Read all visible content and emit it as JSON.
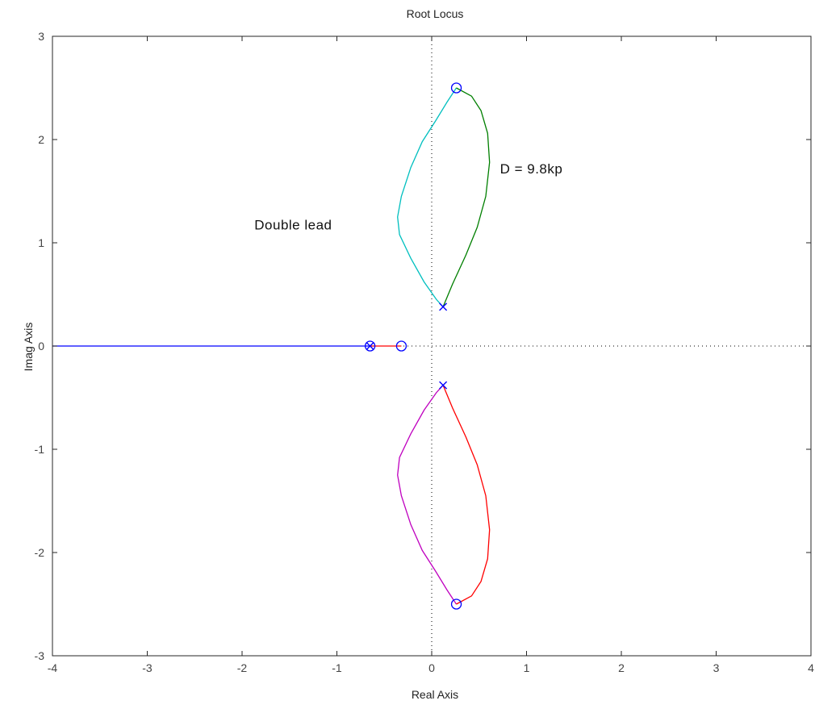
{
  "chart_data": {
    "type": "line",
    "title": "Root Locus",
    "xlabel": "Real Axis",
    "ylabel": "Imag Axis",
    "xlim": [
      -4,
      4
    ],
    "ylim": [
      -3,
      3
    ],
    "xticks": [
      "-4",
      "-3",
      "-2",
      "-1",
      "0",
      "1",
      "2",
      "3",
      "4"
    ],
    "yticks": [
      "3",
      "2",
      "1",
      "0",
      "-1",
      "-2",
      "-3"
    ],
    "grid": false,
    "annotations": [
      {
        "text": "D = 9.8kp",
        "x": 0.72,
        "y": 1.67
      },
      {
        "text": "Double lead",
        "x": -1.87,
        "y": 1.13
      }
    ],
    "poles": [
      [
        -0.65,
        0
      ],
      [
        0.12,
        0.38
      ],
      [
        0.12,
        -0.38
      ]
    ],
    "zeros": [
      [
        -0.65,
        0
      ],
      [
        -0.32,
        0
      ],
      [
        0.26,
        2.5
      ],
      [
        0.26,
        -2.5
      ]
    ],
    "series": [
      {
        "color": "#0000ff",
        "points": [
          [
            -4,
            0
          ],
          [
            -0.65,
            0
          ]
        ]
      },
      {
        "color": "#ff0000",
        "points": [
          [
            -0.65,
            0
          ],
          [
            -0.32,
            0
          ]
        ]
      },
      {
        "color": "#00bfbf",
        "points": [
          [
            0.12,
            0.38
          ],
          [
            0.05,
            0.45
          ],
          [
            -0.08,
            0.62
          ],
          [
            -0.22,
            0.85
          ],
          [
            -0.34,
            1.08
          ],
          [
            -0.36,
            1.25
          ],
          [
            -0.32,
            1.45
          ],
          [
            -0.22,
            1.73
          ],
          [
            -0.1,
            1.98
          ],
          [
            0.04,
            2.18
          ],
          [
            0.16,
            2.36
          ],
          [
            0.26,
            2.5
          ]
        ]
      },
      {
        "color": "#007f00",
        "points": [
          [
            0.12,
            0.38
          ],
          [
            0.22,
            0.6
          ],
          [
            0.36,
            0.88
          ],
          [
            0.48,
            1.15
          ],
          [
            0.57,
            1.45
          ],
          [
            0.61,
            1.78
          ],
          [
            0.59,
            2.06
          ],
          [
            0.52,
            2.28
          ],
          [
            0.42,
            2.42
          ],
          [
            0.26,
            2.5
          ]
        ]
      },
      {
        "color": "#bf00bf",
        "points": [
          [
            0.12,
            -0.38
          ],
          [
            0.05,
            -0.45
          ],
          [
            -0.08,
            -0.62
          ],
          [
            -0.22,
            -0.85
          ],
          [
            -0.34,
            -1.08
          ],
          [
            -0.36,
            -1.25
          ],
          [
            -0.32,
            -1.45
          ],
          [
            -0.22,
            -1.73
          ],
          [
            -0.1,
            -1.98
          ],
          [
            0.04,
            -2.18
          ],
          [
            0.16,
            -2.36
          ],
          [
            0.26,
            -2.5
          ]
        ]
      },
      {
        "color": "#ff0000",
        "points": [
          [
            0.12,
            -0.38
          ],
          [
            0.22,
            -0.6
          ],
          [
            0.36,
            -0.88
          ],
          [
            0.48,
            -1.15
          ],
          [
            0.57,
            -1.45
          ],
          [
            0.61,
            -1.78
          ],
          [
            0.59,
            -2.06
          ],
          [
            0.52,
            -2.28
          ],
          [
            0.42,
            -2.42
          ],
          [
            0.26,
            -2.5
          ]
        ]
      }
    ]
  },
  "colors": {
    "axes": "#262626",
    "marker": "#0000ff",
    "zero_axis": "#000000"
  }
}
